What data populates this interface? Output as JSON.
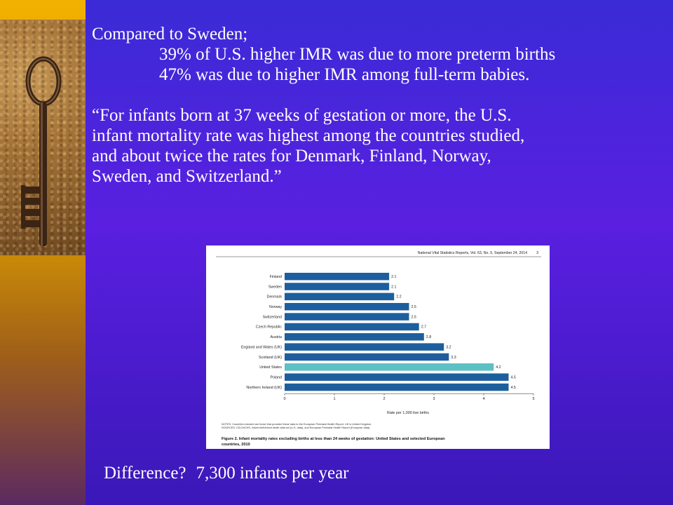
{
  "slide": {
    "lines": [
      "Compared to Sweden;",
      "39% of U.S. higher IMR was due to more preterm births",
      "47% was due to higher IMR among full-term babies."
    ],
    "quote_lines": [
      "“For infants born at 37 weeks of gestation or more, the U.S.",
      "infant mortality rate was highest among the countries studied,",
      "and about twice the rates for Denmark, Finland, Norway,",
      "Sweden, and Switzerland.”"
    ],
    "difference_label": "Difference?",
    "difference_value": "7,300 infants per year"
  },
  "colors": {
    "bar": "#1d5f9e",
    "highlight": "#5cc0c4"
  },
  "chart_data": {
    "type": "bar",
    "orientation": "horizontal",
    "header": "National Vital Statistics Reports, Vol. 63, No. 5, September 24, 2014",
    "page_number": "3",
    "categories": [
      "Finland",
      "Sweden",
      "Denmark",
      "Norway",
      "Switzerland",
      "Czech Republic",
      "Austria",
      "England and Wales (UK)",
      "Scotland (UK)",
      "United States",
      "Poland",
      "Northern Ireland (UK)"
    ],
    "values": [
      2.1,
      2.1,
      2.2,
      2.5,
      2.5,
      2.7,
      2.8,
      3.2,
      3.3,
      4.2,
      4.5,
      4.5
    ],
    "highlight_category": "United States",
    "xlabel": "Rate per 1,000 live births",
    "xlim": [
      0,
      5
    ],
    "xticks": [
      0,
      1,
      2,
      3,
      4,
      5
    ],
    "notes": [
      "NOTES: Countries included are those that provided these data to the European Perinatal Health Report. UK is United Kingdom.",
      "SOURCES: CDC/NCHS, linked birth/infant death data set (U.S. data), and European Perinatal Health Report (European data)."
    ],
    "caption_lines": [
      "Figure 2. Infant mortality rates excluding births at less than 24 weeks of gestation: United States and selected European",
      "countries, 2010"
    ]
  }
}
